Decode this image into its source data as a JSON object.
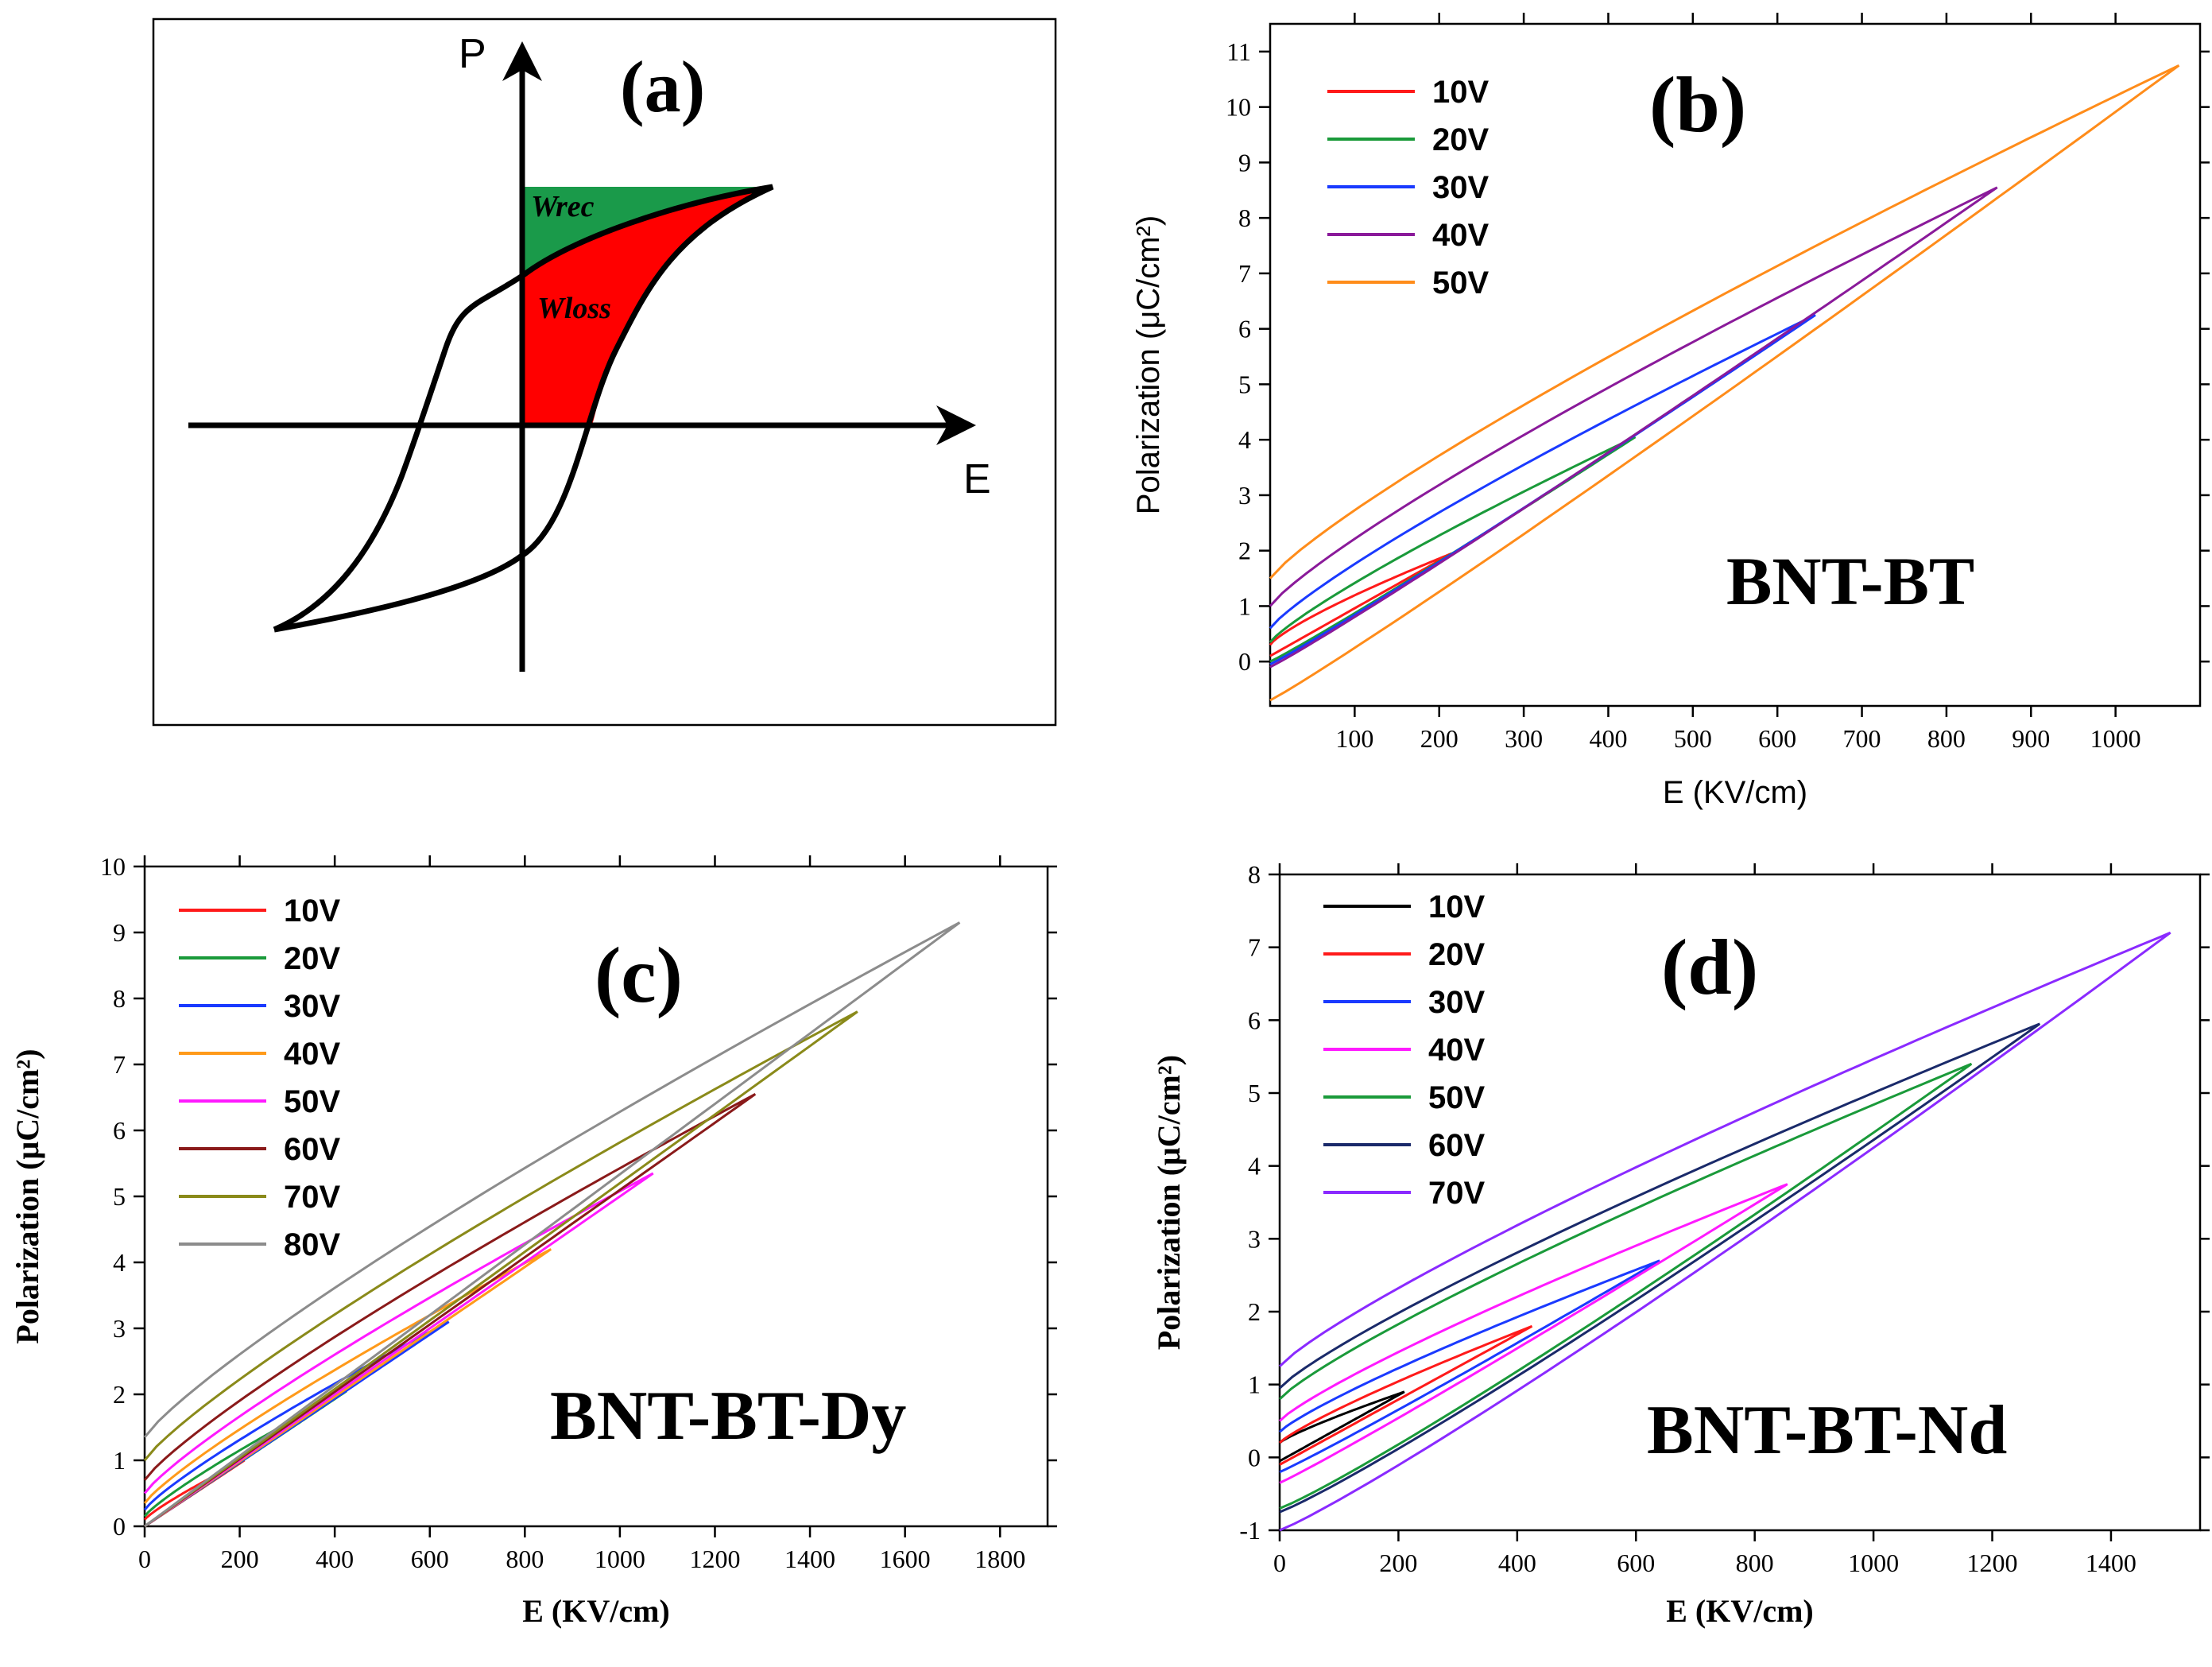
{
  "panel_a": {
    "label": "(a)",
    "p_axis": "P",
    "e_axis": "E",
    "wrec": "Wrec",
    "wloss": "Wloss",
    "colors": {
      "wrec": "#1a9a4a",
      "wloss": "#ff0000",
      "curve": "#000000"
    }
  },
  "chart_data": [
    {
      "panel": "b",
      "type": "line",
      "label": "(b)",
      "material": "BNT-BT",
      "xlabel": "E (KV/cm)",
      "ylabel": "Polarization (μC/cm²)",
      "xlim": [
        0,
        1100
      ],
      "ylim": [
        -0.8,
        11.5
      ],
      "xticks": [
        100,
        200,
        300,
        400,
        500,
        600,
        700,
        800,
        900,
        1000
      ],
      "yticks": [
        0,
        1,
        2,
        3,
        4,
        5,
        6,
        7,
        8,
        9,
        10,
        11
      ],
      "grid": false,
      "legend": "top-left",
      "series": [
        {
          "name": "10V",
          "color": "#ff1a1a",
          "emax": 215,
          "pmax": 1.95,
          "p0_up": 0.1,
          "p0_down": 0.3,
          "k_up": 1.0,
          "k_down": 0.8
        },
        {
          "name": "20V",
          "color": "#1a9a3a",
          "emax": 432,
          "pmax": 4.05,
          "p0_up": 0.0,
          "p0_down": 0.35,
          "k_up": 1.05,
          "k_down": 0.85
        },
        {
          "name": "30V",
          "color": "#1a3aff",
          "emax": 645,
          "pmax": 6.25,
          "p0_up": -0.05,
          "p0_down": 0.6,
          "k_up": 1.05,
          "k_down": 0.85
        },
        {
          "name": "40V",
          "color": "#8a1a9a",
          "emax": 860,
          "pmax": 8.55,
          "p0_up": -0.1,
          "p0_down": 1.0,
          "k_up": 1.05,
          "k_down": 0.85
        },
        {
          "name": "50V",
          "color": "#ff8c1a",
          "emax": 1075,
          "pmax": 10.75,
          "p0_up": -0.7,
          "p0_down": 1.5,
          "k_up": 1.05,
          "k_down": 0.85
        }
      ]
    },
    {
      "panel": "c",
      "type": "line",
      "label": "(c)",
      "material": "BNT-BT-Dy",
      "xlabel": "E (KV/cm)",
      "ylabel": "Polarization (μC/cm²)",
      "xlim": [
        0,
        1900
      ],
      "ylim": [
        0,
        10
      ],
      "xticks": [
        0,
        200,
        400,
        600,
        800,
        1000,
        1200,
        1400,
        1600,
        1800
      ],
      "yticks": [
        0,
        1,
        2,
        3,
        4,
        5,
        6,
        7,
        8,
        9,
        10
      ],
      "grid": false,
      "legend": "top-left",
      "series": [
        {
          "name": "10V",
          "color": "#ff1a1a",
          "emax": 210,
          "pmax": 1.0,
          "p0_up": 0.0,
          "p0_down": 0.1,
          "k_up": 1.0,
          "k_down": 0.85
        },
        {
          "name": "20V",
          "color": "#1a9a3a",
          "emax": 425,
          "pmax": 2.05,
          "p0_up": 0.0,
          "p0_down": 0.15,
          "k_up": 1.0,
          "k_down": 0.85
        },
        {
          "name": "30V",
          "color": "#1a3aff",
          "emax": 640,
          "pmax": 3.1,
          "p0_up": 0.0,
          "p0_down": 0.25,
          "k_up": 1.0,
          "k_down": 0.85
        },
        {
          "name": "40V",
          "color": "#ff9a1a",
          "emax": 855,
          "pmax": 4.2,
          "p0_up": 0.0,
          "p0_down": 0.35,
          "k_up": 1.0,
          "k_down": 0.85
        },
        {
          "name": "50V",
          "color": "#ff1aff",
          "emax": 1070,
          "pmax": 5.35,
          "p0_up": 0.0,
          "p0_down": 0.5,
          "k_up": 1.0,
          "k_down": 0.85
        },
        {
          "name": "60V",
          "color": "#8a1a1a",
          "emax": 1285,
          "pmax": 6.55,
          "p0_up": 0.0,
          "p0_down": 0.7,
          "k_up": 1.0,
          "k_down": 0.85
        },
        {
          "name": "70V",
          "color": "#8a8a1a",
          "emax": 1500,
          "pmax": 7.8,
          "p0_up": 0.0,
          "p0_down": 1.0,
          "k_up": 1.0,
          "k_down": 0.85
        },
        {
          "name": "80V",
          "color": "#8c8c8c",
          "emax": 1715,
          "pmax": 9.15,
          "p0_up": 0.0,
          "p0_down": 1.35,
          "k_up": 1.0,
          "k_down": 0.85
        }
      ]
    },
    {
      "panel": "d",
      "type": "line",
      "label": "(d)",
      "material": "BNT-BT-Nd",
      "xlabel": "E (KV/cm)",
      "ylabel": "Polarization (μC/cm²)",
      "xlim": [
        0,
        1550
      ],
      "ylim": [
        -1,
        8
      ],
      "xticks": [
        0,
        200,
        400,
        600,
        800,
        1000,
        1200,
        1400
      ],
      "yticks": [
        -1,
        0,
        1,
        2,
        3,
        4,
        5,
        6,
        7,
        8
      ],
      "grid": false,
      "legend": "top-left",
      "series": [
        {
          "name": "10V",
          "color": "#000000",
          "emax": 210,
          "pmax": 0.9,
          "p0_up": -0.05,
          "p0_down": 0.2,
          "k_up": 1.0,
          "k_down": 0.85
        },
        {
          "name": "20V",
          "color": "#ff1a1a",
          "emax": 425,
          "pmax": 1.8,
          "p0_up": -0.1,
          "p0_down": 0.2,
          "k_up": 1.0,
          "k_down": 0.85
        },
        {
          "name": "30V",
          "color": "#1a3aff",
          "emax": 640,
          "pmax": 2.7,
          "p0_up": -0.2,
          "p0_down": 0.35,
          "k_up": 1.05,
          "k_down": 0.85
        },
        {
          "name": "40V",
          "color": "#ff1aff",
          "emax": 855,
          "pmax": 3.75,
          "p0_up": -0.35,
          "p0_down": 0.5,
          "k_up": 1.05,
          "k_down": 0.85
        },
        {
          "name": "50V",
          "color": "#1a9a3a",
          "emax": 1165,
          "pmax": 5.4,
          "p0_up": -0.7,
          "p0_down": 0.8,
          "k_up": 1.1,
          "k_down": 0.85
        },
        {
          "name": "60V",
          "color": "#1a2a6a",
          "emax": 1280,
          "pmax": 5.95,
          "p0_up": -0.75,
          "p0_down": 0.95,
          "k_up": 1.1,
          "k_down": 0.85
        },
        {
          "name": "70V",
          "color": "#8a2aff",
          "emax": 1500,
          "pmax": 7.2,
          "p0_up": -1.0,
          "p0_down": 1.25,
          "k_up": 1.1,
          "k_down": 0.85
        }
      ]
    }
  ]
}
